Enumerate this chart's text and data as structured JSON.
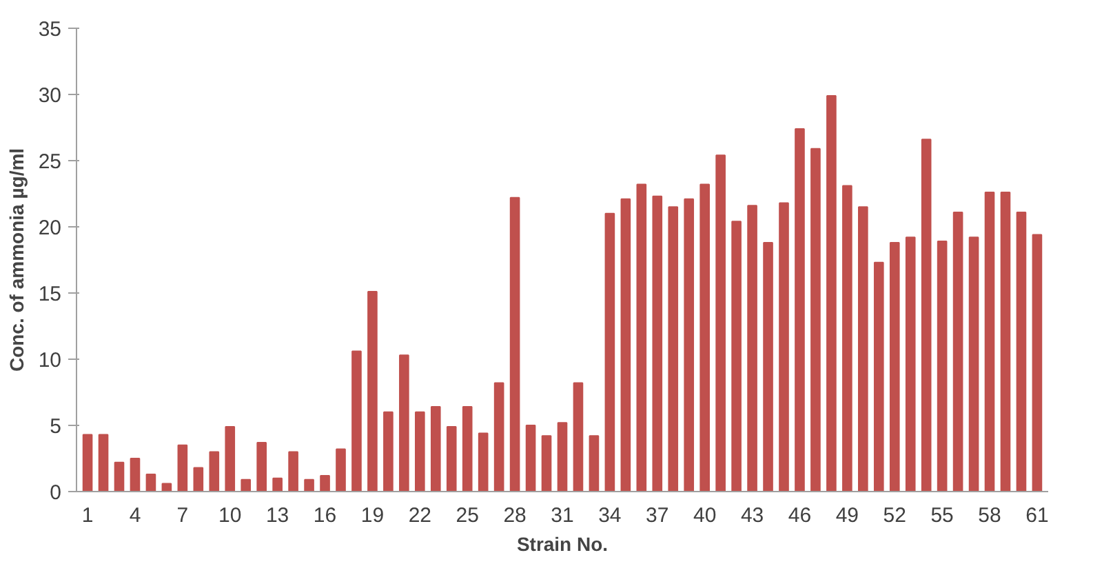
{
  "chart_data": {
    "type": "bar",
    "xlabel": "Strain No.",
    "ylabel": "Conc. of ammonia µg/ml",
    "categories": [
      "1",
      null,
      null,
      "4",
      null,
      null,
      "7",
      null,
      null,
      "10",
      null,
      null,
      "13",
      null,
      null,
      "16",
      null,
      null,
      "19",
      null,
      null,
      "22",
      null,
      null,
      "25",
      null,
      null,
      "28",
      null,
      null,
      "31",
      null,
      null,
      "34",
      null,
      null,
      "37",
      null,
      null,
      "40",
      null,
      null,
      "43",
      null,
      null,
      "46",
      null,
      null,
      "49",
      null,
      null,
      "52",
      null,
      null,
      "55",
      null,
      null,
      "58",
      null,
      null,
      "61"
    ],
    "values": [
      4.3,
      4.3,
      2.2,
      2.5,
      1.3,
      0.6,
      3.5,
      1.8,
      3.0,
      4.9,
      0.9,
      3.7,
      1.0,
      3.0,
      0.9,
      1.2,
      3.2,
      10.6,
      15.1,
      6.0,
      10.3,
      6.0,
      6.4,
      4.9,
      6.4,
      4.4,
      8.2,
      22.2,
      5.0,
      4.2,
      5.2,
      8.2,
      4.2,
      21.0,
      22.1,
      23.2,
      22.3,
      21.5,
      22.1,
      23.2,
      25.4,
      20.4,
      21.6,
      18.8,
      21.8,
      27.4,
      25.9,
      29.9,
      23.1,
      21.5,
      17.3,
      18.8,
      19.2,
      26.6,
      18.9,
      21.1,
      19.2,
      22.6,
      22.6,
      21.1,
      19.4
    ],
    "color": "#c0504d",
    "ylim": [
      0,
      35
    ],
    "yticks": [
      0,
      5,
      10,
      15,
      20,
      25,
      30,
      35
    ],
    "grid": false
  }
}
